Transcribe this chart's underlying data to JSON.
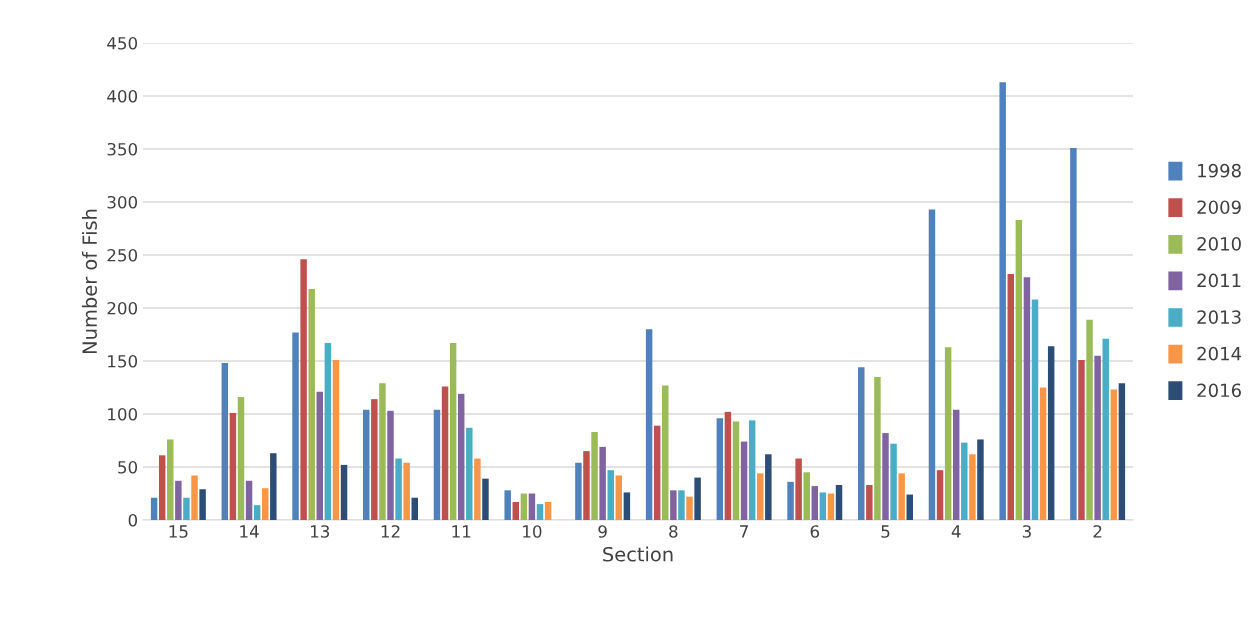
{
  "chart_data": {
    "type": "bar",
    "xlabel": "Section",
    "ylabel": "Number of Fish",
    "categories": [
      "15",
      "14",
      "13",
      "12",
      "11",
      "10",
      "9",
      "8",
      "7",
      "6",
      "5",
      "4",
      "3",
      "2"
    ],
    "series": [
      {
        "name": "1998",
        "color": "#4f81bd",
        "values": [
          21,
          148,
          177,
          104,
          104,
          28,
          54,
          180,
          96,
          36,
          144,
          293,
          413,
          351
        ]
      },
      {
        "name": "2009",
        "color": "#c0504d",
        "values": [
          61,
          101,
          246,
          114,
          126,
          17,
          65,
          89,
          102,
          58,
          33,
          47,
          232,
          151
        ]
      },
      {
        "name": "2010",
        "color": "#9bbb59",
        "values": [
          76,
          116,
          218,
          129,
          167,
          25,
          83,
          127,
          93,
          45,
          135,
          163,
          283,
          189
        ]
      },
      {
        "name": "2011",
        "color": "#8064a2",
        "values": [
          37,
          37,
          121,
          103,
          119,
          25,
          69,
          28,
          74,
          32,
          82,
          104,
          229,
          155
        ]
      },
      {
        "name": "2013",
        "color": "#4bacc6",
        "values": [
          21,
          14,
          167,
          58,
          87,
          15,
          47,
          28,
          94,
          26,
          72,
          73,
          208,
          171
        ]
      },
      {
        "name": "2014",
        "color": "#f79646",
        "values": [
          42,
          30,
          151,
          54,
          58,
          17,
          42,
          22,
          44,
          25,
          44,
          62,
          125,
          123
        ]
      },
      {
        "name": "2016",
        "color": "#2c4d75",
        "values": [
          29,
          63,
          52,
          21,
          39,
          null,
          26,
          40,
          62,
          33,
          24,
          76,
          164,
          129
        ]
      }
    ],
    "ylim": [
      0,
      450
    ],
    "yticks": [
      0,
      50,
      100,
      150,
      200,
      250,
      300,
      350,
      400,
      450
    ],
    "grid": "y",
    "legend": "right"
  }
}
